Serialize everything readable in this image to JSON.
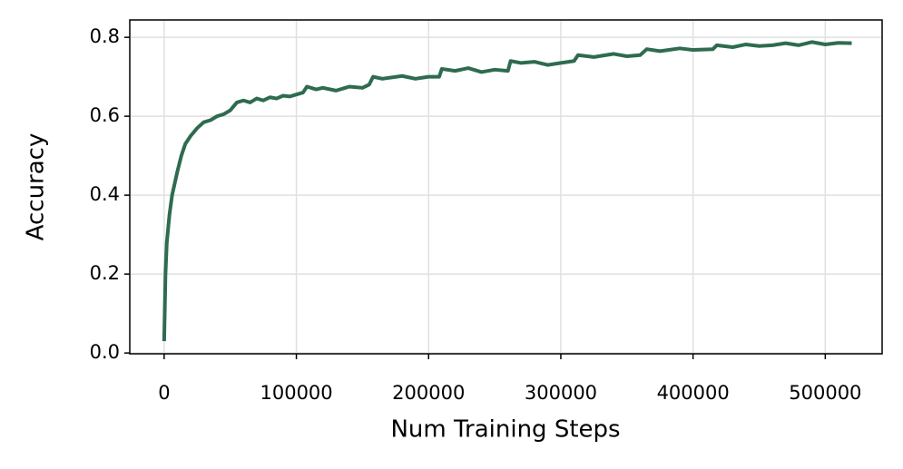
{
  "chart_data": {
    "type": "line",
    "x_label": "Num Training Steps",
    "y_label": "Accuracy",
    "x": [
      0,
      1000,
      2000,
      4000,
      6000,
      8000,
      10000,
      13000,
      16000,
      20000,
      25000,
      30000,
      35000,
      40000,
      45000,
      50000,
      55000,
      60000,
      65000,
      70000,
      75000,
      80000,
      85000,
      90000,
      95000,
      100000,
      105000,
      108000,
      115000,
      120000,
      130000,
      140000,
      150000,
      155000,
      158000,
      165000,
      180000,
      190000,
      200000,
      208000,
      210000,
      220000,
      230000,
      240000,
      250000,
      260000,
      262000,
      270000,
      280000,
      290000,
      300000,
      310000,
      313000,
      325000,
      340000,
      350000,
      360000,
      365000,
      375000,
      390000,
      400000,
      415000,
      418000,
      430000,
      440000,
      450000,
      460000,
      470000,
      480000,
      490000,
      500000,
      510000,
      520000
    ],
    "series": [
      {
        "name": "Accuracy",
        "color": "#2e6b4f",
        "values": [
          0.03,
          0.2,
          0.28,
          0.35,
          0.4,
          0.43,
          0.46,
          0.5,
          0.53,
          0.55,
          0.57,
          0.585,
          0.59,
          0.6,
          0.605,
          0.615,
          0.635,
          0.64,
          0.635,
          0.645,
          0.64,
          0.648,
          0.645,
          0.652,
          0.65,
          0.655,
          0.66,
          0.675,
          0.668,
          0.672,
          0.665,
          0.675,
          0.672,
          0.68,
          0.7,
          0.695,
          0.702,
          0.695,
          0.7,
          0.7,
          0.72,
          0.715,
          0.722,
          0.712,
          0.718,
          0.715,
          0.74,
          0.735,
          0.738,
          0.73,
          0.735,
          0.74,
          0.755,
          0.75,
          0.758,
          0.752,
          0.755,
          0.77,
          0.765,
          0.772,
          0.768,
          0.77,
          0.78,
          0.775,
          0.782,
          0.778,
          0.78,
          0.785,
          0.78,
          0.788,
          0.782,
          0.786,
          0.785
        ]
      }
    ],
    "xlim": [
      -26000,
      543000
    ],
    "ylim": [
      -0.002,
      0.844
    ],
    "xticks": [
      0,
      100000,
      200000,
      300000,
      400000,
      500000
    ],
    "yticks": [
      {
        "value": 0,
        "label": "0.0"
      },
      0.2,
      0.4,
      0.6,
      0.8
    ],
    "grid": true
  }
}
